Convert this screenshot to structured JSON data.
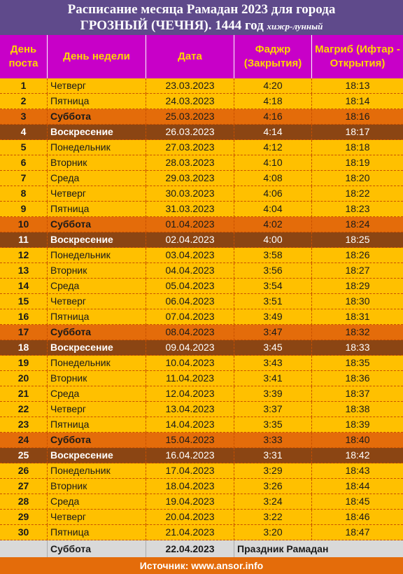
{
  "title": {
    "line1": "Расписание месяца Рамадан 2023  для города",
    "line2_main": "ГРОЗНЫЙ (ЧЕЧНЯ). 1444 год",
    "line2_small": "хижр-лунный"
  },
  "headers": {
    "day_number": "День поста",
    "weekday": "День недели",
    "date": "Дата",
    "fajr": "Фаджр (Закрытия)",
    "maghrib": "Магриб (Ифтар - Открытия)"
  },
  "rows": [
    {
      "n": "1",
      "weekday": "Четверг",
      "date": "23.03.2023",
      "fajr": "4:20",
      "maghrib": "18:13",
      "kind": "weekday"
    },
    {
      "n": "2",
      "weekday": "Пятница",
      "date": "24.03.2023",
      "fajr": "4:18",
      "maghrib": "18:14",
      "kind": "weekday"
    },
    {
      "n": "3",
      "weekday": "Суббота",
      "date": "25.03.2023",
      "fajr": "4:16",
      "maghrib": "18:16",
      "kind": "saturday"
    },
    {
      "n": "4",
      "weekday": "Воскресение",
      "date": "26.03.2023",
      "fajr": "4:14",
      "maghrib": "18:17",
      "kind": "sunday"
    },
    {
      "n": "5",
      "weekday": "Понедельник",
      "date": "27.03.2023",
      "fajr": "4:12",
      "maghrib": "18:18",
      "kind": "weekday"
    },
    {
      "n": "6",
      "weekday": "Вторник",
      "date": "28.03.2023",
      "fajr": "4:10",
      "maghrib": "18:19",
      "kind": "weekday"
    },
    {
      "n": "7",
      "weekday": "Среда",
      "date": "29.03.2023",
      "fajr": "4:08",
      "maghrib": "18:20",
      "kind": "weekday"
    },
    {
      "n": "8",
      "weekday": "Четверг",
      "date": "30.03.2023",
      "fajr": "4:06",
      "maghrib": "18:22",
      "kind": "weekday"
    },
    {
      "n": "9",
      "weekday": "Пятница",
      "date": "31.03.2023",
      "fajr": "4:04",
      "maghrib": "18:23",
      "kind": "weekday"
    },
    {
      "n": "10",
      "weekday": "Суббота",
      "date": "01.04.2023",
      "fajr": "4:02",
      "maghrib": "18:24",
      "kind": "saturday"
    },
    {
      "n": "11",
      "weekday": "Воскресение",
      "date": "02.04.2023",
      "fajr": "4:00",
      "maghrib": "18:25",
      "kind": "sunday"
    },
    {
      "n": "12",
      "weekday": "Понедельник",
      "date": "03.04.2023",
      "fajr": "3:58",
      "maghrib": "18:26",
      "kind": "weekday"
    },
    {
      "n": "13",
      "weekday": "Вторник",
      "date": "04.04.2023",
      "fajr": "3:56",
      "maghrib": "18:27",
      "kind": "weekday"
    },
    {
      "n": "14",
      "weekday": "Среда",
      "date": "05.04.2023",
      "fajr": "3:54",
      "maghrib": "18:29",
      "kind": "weekday"
    },
    {
      "n": "15",
      "weekday": "Четверг",
      "date": "06.04.2023",
      "fajr": "3:51",
      "maghrib": "18:30",
      "kind": "weekday"
    },
    {
      "n": "16",
      "weekday": "Пятница",
      "date": "07.04.2023",
      "fajr": "3:49",
      "maghrib": "18:31",
      "kind": "weekday"
    },
    {
      "n": "17",
      "weekday": "Суббота",
      "date": "08.04.2023",
      "fajr": "3:47",
      "maghrib": "18:32",
      "kind": "saturday"
    },
    {
      "n": "18",
      "weekday": "Воскресение",
      "date": "09.04.2023",
      "fajr": "3:45",
      "maghrib": "18:33",
      "kind": "sunday"
    },
    {
      "n": "19",
      "weekday": "Понедельник",
      "date": "10.04.2023",
      "fajr": "3:43",
      "maghrib": "18:35",
      "kind": "weekday"
    },
    {
      "n": "20",
      "weekday": "Вторник",
      "date": "11.04.2023",
      "fajr": "3:41",
      "maghrib": "18:36",
      "kind": "weekday"
    },
    {
      "n": "21",
      "weekday": "Среда",
      "date": "12.04.2023",
      "fajr": "3:39",
      "maghrib": "18:37",
      "kind": "weekday"
    },
    {
      "n": "22",
      "weekday": "Четверг",
      "date": "13.04.2023",
      "fajr": "3:37",
      "maghrib": "18:38",
      "kind": "weekday"
    },
    {
      "n": "23",
      "weekday": "Пятница",
      "date": "14.04.2023",
      "fajr": "3:35",
      "maghrib": "18:39",
      "kind": "weekday"
    },
    {
      "n": "24",
      "weekday": "Суббота",
      "date": "15.04.2023",
      "fajr": "3:33",
      "maghrib": "18:40",
      "kind": "saturday"
    },
    {
      "n": "25",
      "weekday": "Воскресение",
      "date": "16.04.2023",
      "fajr": "3:31",
      "maghrib": "18:42",
      "kind": "sunday"
    },
    {
      "n": "26",
      "weekday": "Понедельник",
      "date": "17.04.2023",
      "fajr": "3:29",
      "maghrib": "18:43",
      "kind": "weekday"
    },
    {
      "n": "27",
      "weekday": "Вторник",
      "date": "18.04.2023",
      "fajr": "3:26",
      "maghrib": "18:44",
      "kind": "weekday"
    },
    {
      "n": "28",
      "weekday": "Среда",
      "date": "19.04.2023",
      "fajr": "3:24",
      "maghrib": "18:45",
      "kind": "weekday"
    },
    {
      "n": "29",
      "weekday": "Четверг",
      "date": "20.04.2023",
      "fajr": "3:22",
      "maghrib": "18:46",
      "kind": "weekday"
    },
    {
      "n": "30",
      "weekday": "Пятница",
      "date": "21.04.2023",
      "fajr": "3:20",
      "maghrib": "18:47",
      "kind": "weekday"
    }
  ],
  "final_row": {
    "weekday": "Суббота",
    "date": "22.04.2023",
    "note": "Праздник Рамадан"
  },
  "source": "Источник: www.ansor.info",
  "colors": {
    "title_bg": "#5f4a8b",
    "header_bg": "#c800c8",
    "header_text": "#ffd400",
    "weekday_bg": "#ffc000",
    "saturday_bg": "#e46c0a",
    "sunday_bg": "#8b4513",
    "final_bg": "#d9d9d9"
  }
}
